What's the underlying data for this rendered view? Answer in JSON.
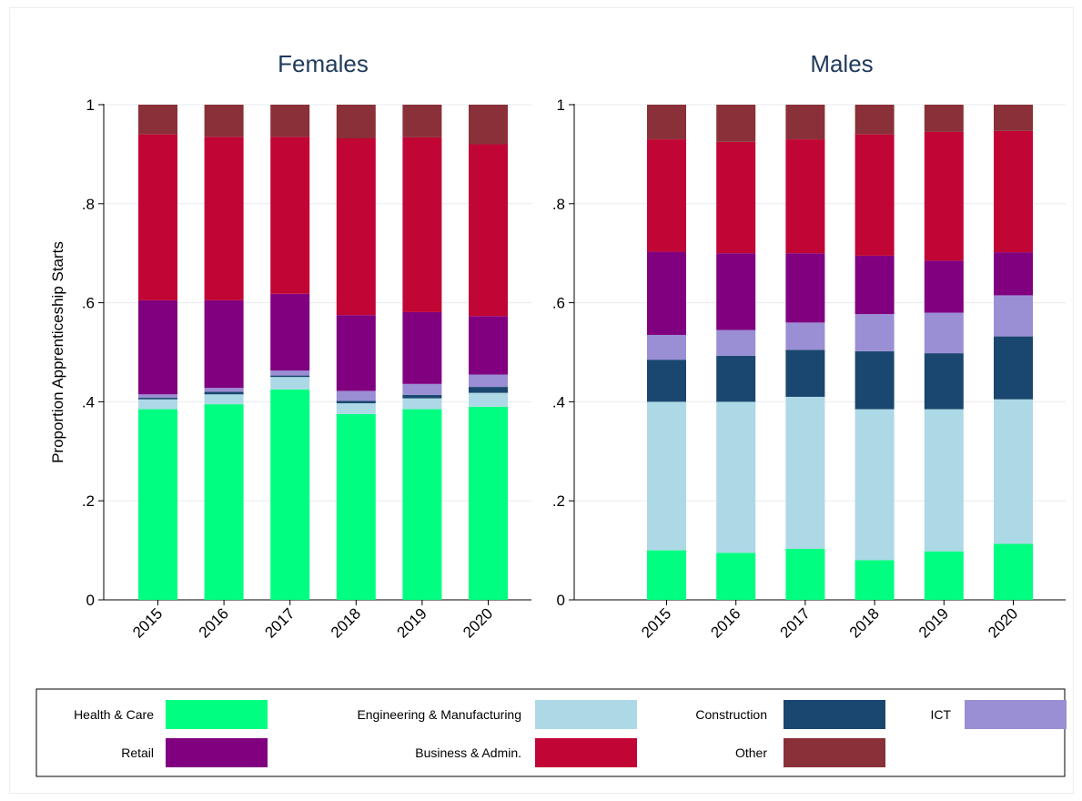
{
  "chart_data": {
    "type": "bar",
    "stacked": true,
    "categories": [
      "2015",
      "2016",
      "2017",
      "2018",
      "2019",
      "2020"
    ],
    "ylabel": "Proportion Apprenticeship Starts",
    "ylim": [
      0,
      1
    ],
    "yticks": [
      {
        "value": 0,
        "label": "0"
      },
      {
        "value": 0.2,
        "label": ".2"
      },
      {
        "value": 0.4,
        "label": ".4"
      },
      {
        "value": 0.6,
        "label": ".6"
      },
      {
        "value": 0.8,
        "label": ".8"
      },
      {
        "value": 1,
        "label": "1"
      }
    ],
    "grid": true,
    "legend_position": "bottom",
    "series_meta": [
      {
        "name": "Health & Care",
        "color": "#00ff80"
      },
      {
        "name": "Engineering & Manufacturing",
        "color": "#add8e6"
      },
      {
        "name": "Construction",
        "color": "#1a476f"
      },
      {
        "name": "ICT",
        "color": "#9a8fd4"
      },
      {
        "name": "Retail",
        "color": "#800080"
      },
      {
        "name": "Business & Admin.",
        "color": "#c10534"
      },
      {
        "name": "Other",
        "color": "#8a3038"
      }
    ],
    "panels": [
      {
        "title": "Females",
        "series": [
          {
            "name": "Health & Care",
            "values": [
              0.385,
              0.395,
              0.425,
              0.375,
              0.385,
              0.39
            ]
          },
          {
            "name": "Engineering & Manufacturing",
            "values": [
              0.02,
              0.02,
              0.025,
              0.022,
              0.022,
              0.028
            ]
          },
          {
            "name": "Construction",
            "values": [
              0.003,
              0.005,
              0.003,
              0.005,
              0.007,
              0.012
            ]
          },
          {
            "name": "ICT",
            "values": [
              0.007,
              0.008,
              0.01,
              0.02,
              0.022,
              0.025
            ]
          },
          {
            "name": "Retail",
            "values": [
              0.19,
              0.177,
              0.155,
              0.153,
              0.145,
              0.118
            ]
          },
          {
            "name": "Business & Admin.",
            "values": [
              0.335,
              0.33,
              0.317,
              0.357,
              0.353,
              0.347
            ]
          },
          {
            "name": "Other",
            "values": [
              0.06,
              0.065,
              0.065,
              0.068,
              0.066,
              0.08
            ]
          }
        ]
      },
      {
        "title": "Males",
        "series": [
          {
            "name": "Health & Care",
            "values": [
              0.1,
              0.095,
              0.103,
              0.08,
              0.098,
              0.113
            ]
          },
          {
            "name": "Engineering & Manufacturing",
            "values": [
              0.3,
              0.305,
              0.307,
              0.305,
              0.287,
              0.292
            ]
          },
          {
            "name": "Construction",
            "values": [
              0.085,
              0.093,
              0.095,
              0.117,
              0.113,
              0.127
            ]
          },
          {
            "name": "ICT",
            "values": [
              0.05,
              0.052,
              0.055,
              0.075,
              0.082,
              0.083
            ]
          },
          {
            "name": "Retail",
            "values": [
              0.168,
              0.155,
              0.14,
              0.118,
              0.105,
              0.087
            ]
          },
          {
            "name": "Business & Admin.",
            "values": [
              0.227,
              0.225,
              0.23,
              0.245,
              0.26,
              0.245
            ]
          },
          {
            "name": "Other",
            "values": [
              0.07,
              0.075,
              0.07,
              0.06,
              0.055,
              0.053
            ]
          }
        ]
      }
    ]
  }
}
